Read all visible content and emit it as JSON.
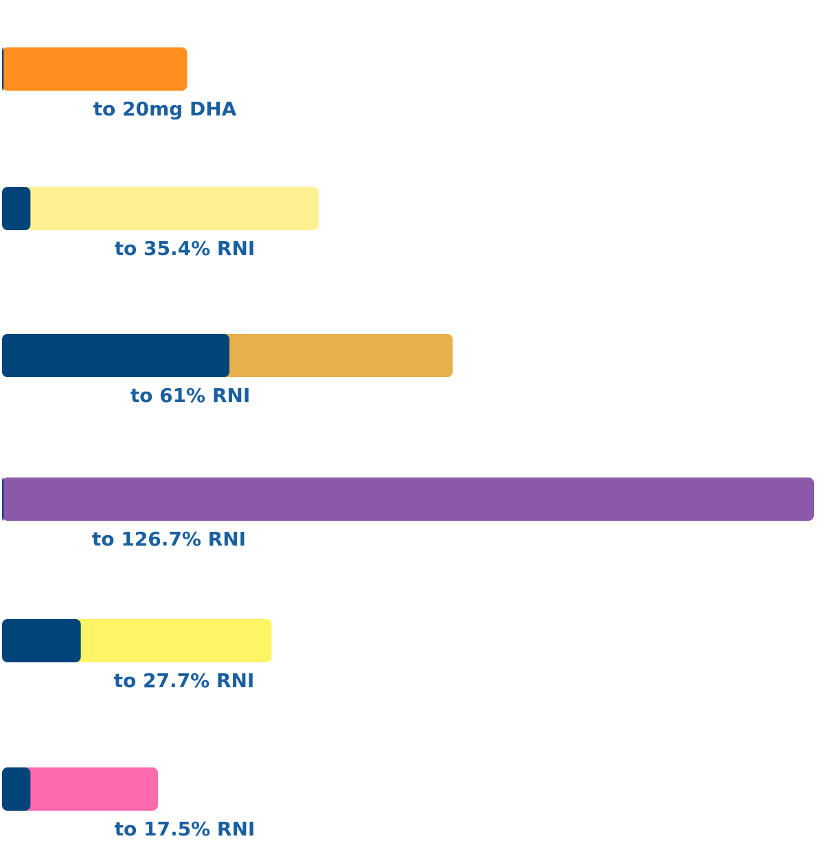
{
  "chart_data": {
    "type": "bar",
    "orientation": "horizontal",
    "stacked": true,
    "label_color": "#1a5fa0",
    "base_color": "#01447a",
    "rows": [
      {
        "label": "to 20mg DHA",
        "base_value": 0.2,
        "total_value": 22.8,
        "color": "#ff9020"
      },
      {
        "label": "to 35.4% RNI",
        "base_value": 3.5,
        "total_value": 39.0,
        "color": "#fff193"
      },
      {
        "label": "to 61% RNI",
        "base_value": 28,
        "total_value": 55.5,
        "color": "#e7b04b"
      },
      {
        "label": "to 126.7% RNI",
        "base_value": 0.2,
        "total_value": 100.0,
        "color": "#8c59aa"
      },
      {
        "label": "to 27.7% RNI",
        "base_value": 9.7,
        "total_value": 33.2,
        "color": "#fff465"
      },
      {
        "label": "to 17.5% RNI",
        "base_value": 3.5,
        "total_value": 19.2,
        "color": "#ff6aaf"
      }
    ],
    "xlim": [
      0,
      100
    ],
    "grid": false,
    "legend": "none",
    "title": "",
    "xlabel": "",
    "ylabel": ""
  }
}
